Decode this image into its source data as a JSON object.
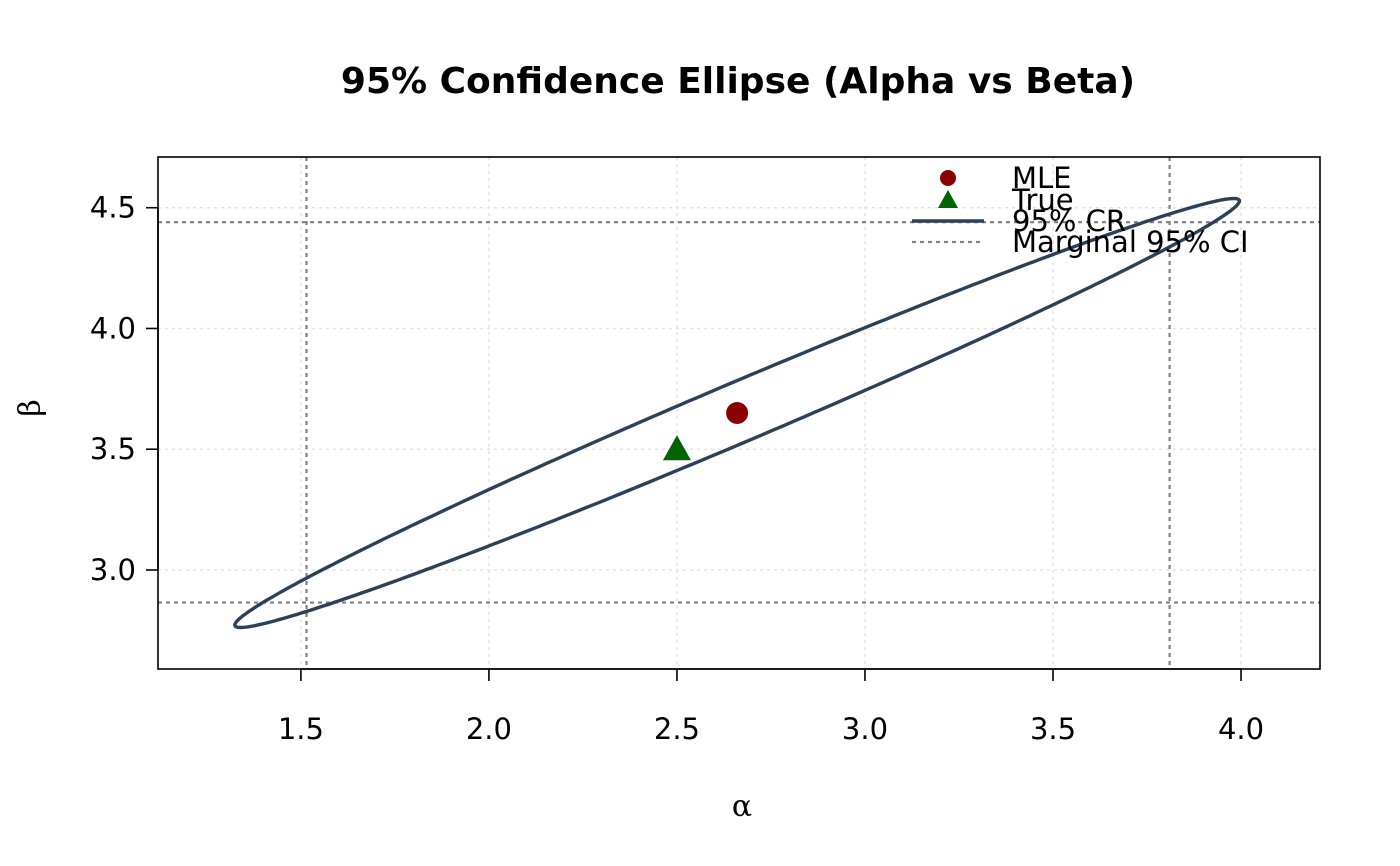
{
  "chart_data": {
    "type": "scatter",
    "title": "95% Confidence Ellipse (Alpha vs Beta)",
    "xlabel": "α",
    "ylabel": "β",
    "xlim": [
      1.12,
      4.21
    ],
    "ylim": [
      2.59,
      4.71
    ],
    "xticks": [
      1.5,
      2.0,
      2.5,
      3.0,
      3.5,
      4.0
    ],
    "yticks": [
      3.0,
      3.5,
      4.0,
      4.5
    ],
    "xtick_labels": [
      "1.5",
      "2.0",
      "2.5",
      "3.0",
      "3.5",
      "4.0"
    ],
    "ytick_labels": [
      "3.0",
      "3.5",
      "4.0",
      "4.5"
    ],
    "grid": true,
    "legend_position": "top-right",
    "points": {
      "mle": {
        "x": 2.66,
        "y": 3.65,
        "color": "#8b0000",
        "shape": "circle"
      },
      "true": {
        "x": 2.5,
        "y": 3.5,
        "color": "#006400",
        "shape": "triangle"
      }
    },
    "confidence_region": {
      "center": [
        2.66,
        3.65
      ],
      "semi_major": 1.6,
      "semi_minor": 0.112,
      "angle_deg": 33.5,
      "color": "#2e4057"
    },
    "marginal_ci": {
      "alpha": [
        1.515,
        3.81
      ],
      "beta": [
        2.865,
        4.44
      ],
      "color": "#808080"
    },
    "legend": [
      {
        "key": "mle",
        "label": "MLE"
      },
      {
        "key": "true",
        "label": "True"
      },
      {
        "key": "cr",
        "label": "95% CR"
      },
      {
        "key": "ci",
        "label": "Marginal 95% CI"
      }
    ]
  }
}
